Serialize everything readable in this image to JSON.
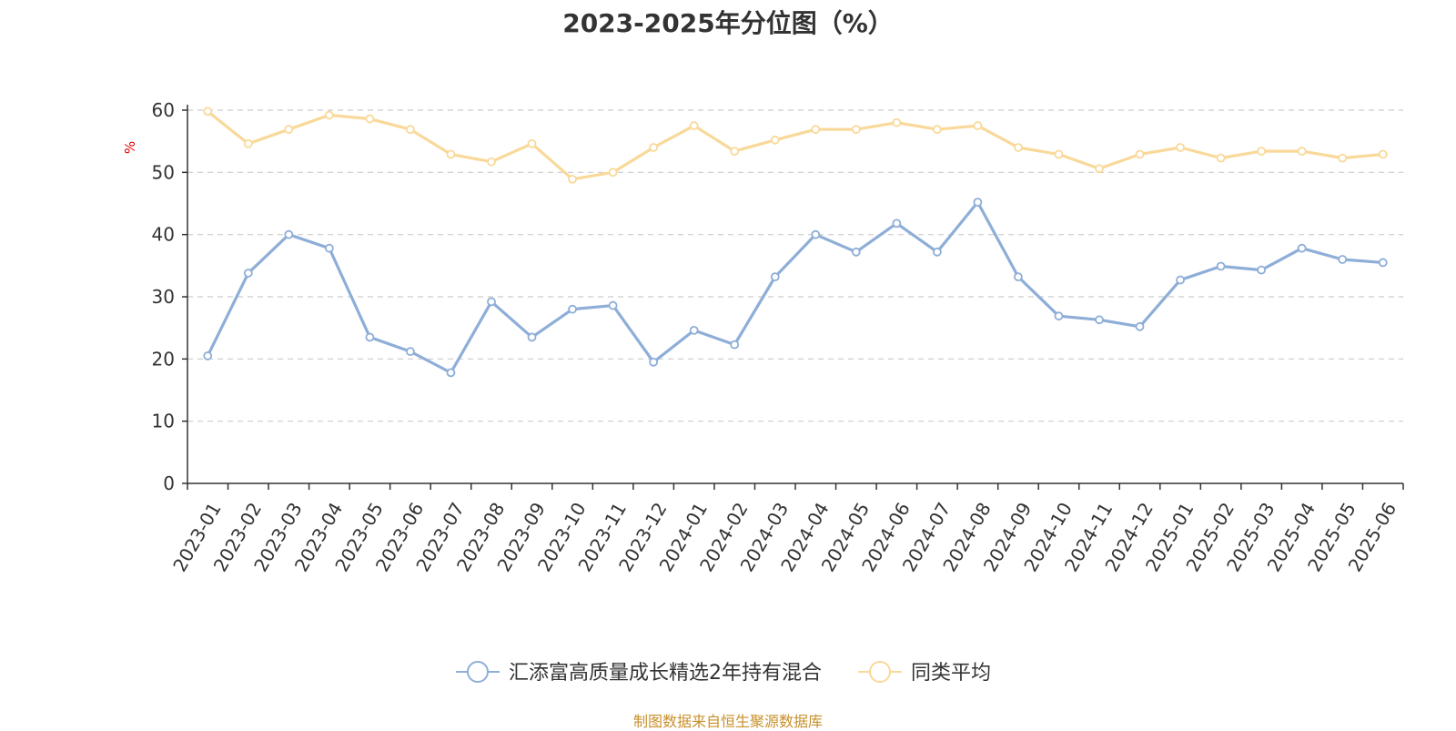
{
  "chart_data": {
    "type": "line",
    "title": "2023-2025年分位图（%）",
    "ylabel": "%",
    "ylim": [
      0,
      60
    ],
    "yticks": [
      0,
      10,
      20,
      30,
      40,
      50,
      60
    ],
    "grid": true,
    "legend_position": "bottom-center",
    "categories": [
      "2023-01",
      "2023-02",
      "2023-03",
      "2023-04",
      "2023-05",
      "2023-06",
      "2023-07",
      "2023-08",
      "2023-09",
      "2023-10",
      "2023-11",
      "2023-12",
      "2024-01",
      "2024-02",
      "2024-03",
      "2024-04",
      "2024-05",
      "2024-06",
      "2024-07",
      "2024-08",
      "2024-09",
      "2024-10",
      "2024-11",
      "2024-12",
      "2025-01",
      "2025-02",
      "2025-03",
      "2025-04",
      "2025-05",
      "2025-06"
    ],
    "series": [
      {
        "name": "汇添富高质量成长精选2年持有混合",
        "color": "#8eaed8",
        "values": [
          20.5,
          33.8,
          40.0,
          37.8,
          23.5,
          21.2,
          17.8,
          29.2,
          23.5,
          28.0,
          28.6,
          19.5,
          24.6,
          22.3,
          33.2,
          40.0,
          37.2,
          41.8,
          37.2,
          45.2,
          33.2,
          26.9,
          26.3,
          25.2,
          32.7,
          34.9,
          34.3,
          37.8,
          36.0,
          35.5
        ]
      },
      {
        "name": "同类平均",
        "color": "#f9d99a",
        "values": [
          59.8,
          54.6,
          56.9,
          59.2,
          58.6,
          56.9,
          52.9,
          51.7,
          54.6,
          48.9,
          50.0,
          54.0,
          57.5,
          53.4,
          55.2,
          56.9,
          56.9,
          58.0,
          56.9,
          57.5,
          54.0,
          52.9,
          50.6,
          52.9,
          54.0,
          52.3,
          53.4,
          53.4,
          52.3,
          52.9
        ]
      }
    ]
  },
  "footer": {
    "source": "制图数据来自恒生聚源数据库"
  }
}
